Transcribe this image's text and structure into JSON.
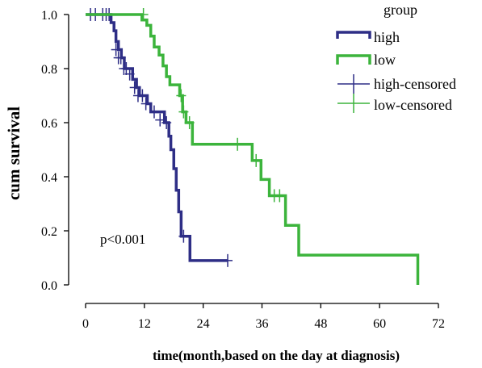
{
  "chart_data": {
    "type": "line",
    "title": "",
    "xlabel": "time(month,based on the day at diagnosis)",
    "ylabel": "cum survival",
    "xlim": [
      0,
      72
    ],
    "ylim": [
      0,
      1
    ],
    "x_ticks": [
      "0",
      "12",
      "24",
      "36",
      "48",
      "60",
      "72"
    ],
    "y_ticks": [
      "0.0",
      "0.2",
      "0.4",
      "0.6",
      "0.8",
      "1.0"
    ],
    "annotation": "p<0.001",
    "legend": {
      "title": "group",
      "position": "top-right",
      "entries": [
        "high",
        "low",
        "high-censored",
        "low-censored"
      ]
    },
    "colors": {
      "high": "#2e2e86",
      "low": "#3cb43c"
    },
    "series": [
      {
        "name": "high",
        "steps": [
          [
            0,
            1.0
          ],
          [
            5.2,
            0.97
          ],
          [
            5.8,
            0.94
          ],
          [
            6.2,
            0.9
          ],
          [
            6.7,
            0.87
          ],
          [
            7.3,
            0.84
          ],
          [
            7.9,
            0.8
          ],
          [
            9.6,
            0.76
          ],
          [
            10.4,
            0.73
          ],
          [
            11.0,
            0.7
          ],
          [
            12.6,
            0.67
          ],
          [
            13.3,
            0.64
          ],
          [
            16.1,
            0.6
          ],
          [
            17.0,
            0.55
          ],
          [
            17.4,
            0.5
          ],
          [
            18.0,
            0.43
          ],
          [
            18.5,
            0.35
          ],
          [
            19.0,
            0.27
          ],
          [
            19.5,
            0.18
          ],
          [
            21.3,
            0.09
          ],
          [
            29.0,
            0.09
          ]
        ],
        "censored": [
          [
            1.0,
            1.0
          ],
          [
            2.0,
            1.0
          ],
          [
            3.5,
            1.0
          ],
          [
            4.2,
            1.0
          ],
          [
            4.8,
            1.0
          ],
          [
            6.2,
            0.87
          ],
          [
            6.7,
            0.84
          ],
          [
            7.2,
            0.84
          ],
          [
            7.8,
            0.8
          ],
          [
            8.3,
            0.8
          ],
          [
            9.0,
            0.78
          ],
          [
            10.0,
            0.73
          ],
          [
            10.7,
            0.7
          ],
          [
            11.6,
            0.7
          ],
          [
            12.3,
            0.67
          ],
          [
            14.0,
            0.64
          ],
          [
            15.2,
            0.61
          ],
          [
            16.5,
            0.6
          ],
          [
            20.0,
            0.18
          ],
          [
            29.0,
            0.09
          ]
        ]
      },
      {
        "name": "low",
        "steps": [
          [
            0,
            1.0
          ],
          [
            11.5,
            0.98
          ],
          [
            12.5,
            0.96
          ],
          [
            13.3,
            0.92
          ],
          [
            14.0,
            0.88
          ],
          [
            15.0,
            0.85
          ],
          [
            15.8,
            0.81
          ],
          [
            16.5,
            0.77
          ],
          [
            17.2,
            0.74
          ],
          [
            19.2,
            0.7
          ],
          [
            19.8,
            0.64
          ],
          [
            20.5,
            0.6
          ],
          [
            21.8,
            0.52
          ],
          [
            34.0,
            0.46
          ],
          [
            35.8,
            0.39
          ],
          [
            37.5,
            0.33
          ],
          [
            40.8,
            0.22
          ],
          [
            43.5,
            0.11
          ],
          [
            67.8,
            0.0
          ]
        ],
        "censored": [
          [
            11.8,
            1.0
          ],
          [
            19.5,
            0.7
          ],
          [
            20.0,
            0.64
          ],
          [
            21.2,
            0.6
          ],
          [
            31.0,
            0.52
          ],
          [
            34.8,
            0.46
          ],
          [
            38.5,
            0.33
          ],
          [
            39.6,
            0.33
          ]
        ]
      }
    ]
  }
}
